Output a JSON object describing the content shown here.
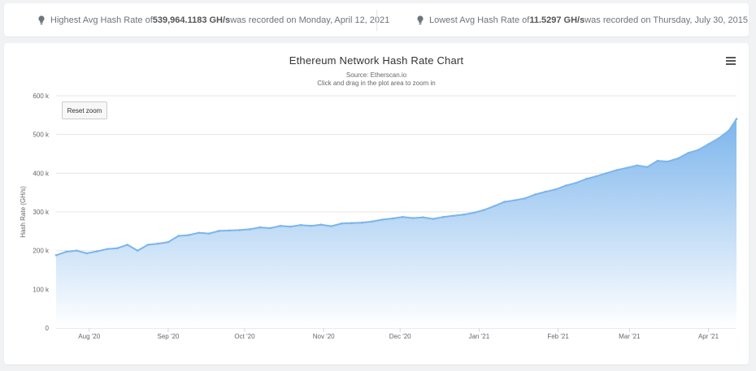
{
  "stats": {
    "highest": {
      "prefix": "Highest Avg Hash Rate of ",
      "value": "539,964.1183 GH/s",
      "suffix": " was recorded on Monday, April 12, 2021"
    },
    "lowest": {
      "prefix": "Lowest Avg Hash Rate of ",
      "value": "11.5297 GH/s",
      "suffix": " was recorded on Thursday, July 30, 2015"
    }
  },
  "chart": {
    "title": "Ethereum Network Hash Rate Chart",
    "source": "Source: Etherscan.io",
    "hint": "Click and drag in the plot area to zoom in",
    "reset_label": "Reset zoom",
    "ylabel": "Hash Rate (GH/s)"
  },
  "colors": {
    "line": "#7cb5ec",
    "area_top": "#7cb5ec",
    "area_bottom": "#ffffff",
    "grid": "#e6e6e6"
  },
  "chart_data": {
    "type": "area",
    "title": "Ethereum Network Hash Rate Chart",
    "subtitle": "Source: Etherscan.io",
    "xlabel": "",
    "ylabel": "Hash Rate (GH/s)",
    "ylim": [
      0,
      600000
    ],
    "xlim": [
      "2020-07-19",
      "2021-04-12"
    ],
    "y_ticks": [
      0,
      100000,
      200000,
      300000,
      400000,
      500000,
      600000
    ],
    "y_tick_labels": [
      "0",
      "100 k",
      "200 k",
      "300 k",
      "400 k",
      "500 k",
      "600 k"
    ],
    "x_ticks": [
      "2020-08-01",
      "2020-09-01",
      "2020-10-01",
      "2020-11-01",
      "2020-12-01",
      "2021-01-01",
      "2021-02-01",
      "2021-03-01",
      "2021-04-01"
    ],
    "x_tick_labels": [
      "Aug '20",
      "Sep '20",
      "Oct '20",
      "Nov '20",
      "Dec '20",
      "Jan '21",
      "Feb '21",
      "Mar '21",
      "Apr '21"
    ],
    "grid": true,
    "legend": false,
    "series": [
      {
        "x": [
          "2020-07-19",
          "2020-07-23",
          "2020-07-27",
          "2020-07-31",
          "2020-08-04",
          "2020-08-08",
          "2020-08-12",
          "2020-08-16",
          "2020-08-20",
          "2020-08-24",
          "2020-08-28",
          "2020-09-01",
          "2020-09-05",
          "2020-09-09",
          "2020-09-13",
          "2020-09-17",
          "2020-09-21",
          "2020-09-25",
          "2020-09-29",
          "2020-10-03",
          "2020-10-07",
          "2020-10-11",
          "2020-10-15",
          "2020-10-19",
          "2020-10-23",
          "2020-10-27",
          "2020-10-31",
          "2020-11-04",
          "2020-11-08",
          "2020-11-12",
          "2020-11-16",
          "2020-11-20",
          "2020-11-24",
          "2020-11-28",
          "2020-12-02",
          "2020-12-06",
          "2020-12-10",
          "2020-12-14",
          "2020-12-18",
          "2020-12-22",
          "2020-12-26",
          "2020-12-30",
          "2021-01-03",
          "2021-01-07",
          "2021-01-11",
          "2021-01-15",
          "2021-01-19",
          "2021-01-23",
          "2021-01-27",
          "2021-01-31",
          "2021-02-04",
          "2021-02-08",
          "2021-02-12",
          "2021-02-16",
          "2021-02-20",
          "2021-02-24",
          "2021-02-28",
          "2021-03-04",
          "2021-03-08",
          "2021-03-12",
          "2021-03-16",
          "2021-03-20",
          "2021-03-24",
          "2021-03-28",
          "2021-04-01",
          "2021-04-05",
          "2021-04-09",
          "2021-04-12"
        ],
        "y": [
          188000,
          197000,
          200000,
          193000,
          198000,
          204000,
          206000,
          215000,
          200000,
          215000,
          218000,
          222000,
          238000,
          240000,
          246000,
          244000,
          251000,
          252000,
          253000,
          255000,
          260000,
          258000,
          264000,
          262000,
          266000,
          264000,
          267000,
          263000,
          270000,
          271000,
          272000,
          275000,
          280000,
          283000,
          287000,
          284000,
          286000,
          282000,
          287000,
          290000,
          293000,
          298000,
          305000,
          315000,
          326000,
          330000,
          335000,
          345000,
          352000,
          358000,
          368000,
          375000,
          385000,
          392000,
          400000,
          408000,
          414000,
          420000,
          416000,
          432000,
          430000,
          438000,
          452000,
          460000,
          475000,
          490000,
          510000,
          540000
        ]
      }
    ]
  }
}
